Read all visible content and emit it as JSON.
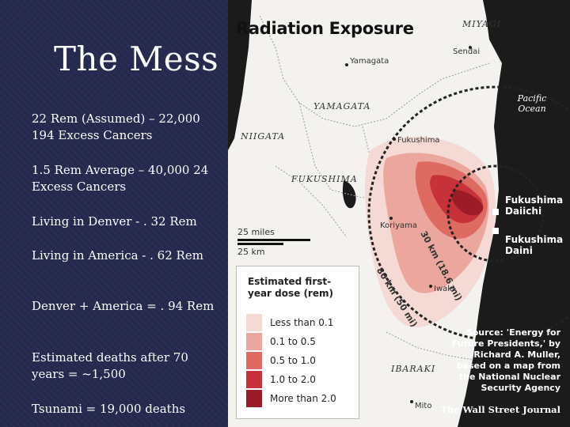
{
  "slide": {
    "title": "The Mess",
    "bullets": [
      "22 Rem (Assumed) – 22,000 194 Excess Cancers",
      "1.5 Rem Average – 40,000 24 Excess Cancers",
      "Living in Denver - . 32 Rem",
      "Living in America - . 62 Rem",
      "Denver + America = . 94 Rem",
      "Estimated deaths after 70 years = ~1,500",
      "Tsunami = 19,000 deaths"
    ]
  },
  "map": {
    "title": "Radiation Exposure",
    "prefectures": [
      "MIYAGI",
      "YAMAGATA",
      "NIIGATA",
      "FUKUSHIMA",
      "IBARAKI"
    ],
    "cities": [
      "Sendai",
      "Yamagata",
      "Fukushima",
      "Koriyama",
      "Iwaki",
      "Mito"
    ],
    "ocean": "Pacific Ocean",
    "plants": [
      "Fukushima Daiichi",
      "Fukushima Daini"
    ],
    "scale": {
      "miles": "25 miles",
      "km": "25 km"
    },
    "rings": [
      "30 km (18.6 mi)",
      "80 km (50 mi)"
    ],
    "legend": {
      "title": "Estimated first-year dose (rem)",
      "items": [
        {
          "label": "Less than 0.1",
          "color": "#f5d9d4"
        },
        {
          "label": "0.1 to 0.5",
          "color": "#eba69d"
        },
        {
          "label": "0.5 to 1.0",
          "color": "#dd6b61"
        },
        {
          "label": "1.0 to 2.0",
          "color": "#c6313a"
        },
        {
          "label": "More than 2.0",
          "color": "#9b1b27"
        }
      ]
    },
    "source": "Source: 'Energy for Future Presidents,' by Richard A. Muller, based on a map from the National Nuclear Security Agency",
    "credit": "The Wall Street Journal"
  }
}
